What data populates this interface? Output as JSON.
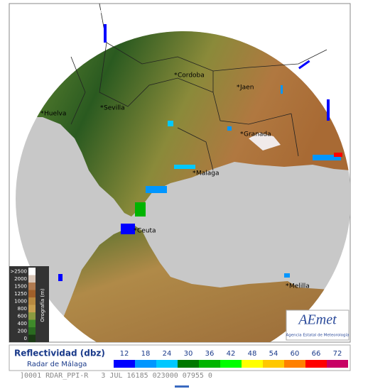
{
  "header": {
    "copyright": "©",
    "agency": "Agencia Estatal de Meteorología"
  },
  "cities": [
    "Huelva",
    "Sevilla",
    "Cordoba",
    "Jaen",
    "Granada",
    "Malaga",
    "Ceuta",
    "Melilla"
  ],
  "elevation_legend": {
    "title": "Orografía (m)",
    "levels": [
      ">2500",
      "2000",
      "1500",
      "1250",
      "1000",
      "800",
      "600",
      "400",
      "200",
      "0"
    ],
    "colors": [
      "#ffffff",
      "#d9c6b8",
      "#b07a50",
      "#a0602a",
      "#b88a40",
      "#c8a050",
      "#8a9a40",
      "#3f8a2a",
      "#2a6a20",
      "#1a3a14"
    ]
  },
  "reflectivity_legend": {
    "title": "Reflectividad (dbz)",
    "subtitle": "Radar de Málaga",
    "levels": [
      12,
      18,
      24,
      30,
      36,
      42,
      48,
      54,
      60,
      66,
      72
    ],
    "colors": [
      "#0000ff",
      "#0096ff",
      "#00c8ff",
      "#007800",
      "#00b400",
      "#00ff00",
      "#ffff00",
      "#ffc800",
      "#ff8000",
      "#ff0000",
      "#c80064"
    ]
  },
  "logo": {
    "name": "AEmet",
    "caption": "Agencia Estatal de Meteorología"
  },
  "status_line": "]0001 RDAR_PPI-R   3 JUL 16185 023000 07955 0"
}
